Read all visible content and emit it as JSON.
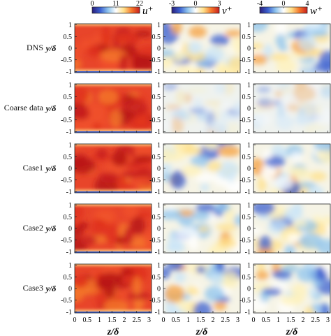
{
  "rows": [
    {
      "label": "DNS",
      "ylabel": "y/δ"
    },
    {
      "label": "Coarse data",
      "ylabel": "y/δ"
    },
    {
      "label": "Case1",
      "ylabel": "y/δ"
    },
    {
      "label": "Case2",
      "ylabel": "y/δ"
    },
    {
      "label": "Case3",
      "ylabel": "y/δ"
    }
  ],
  "columns": [
    {
      "variable": "u⁺",
      "colorbar_ticks": [
        "0",
        "11",
        "22"
      ],
      "range": [
        0,
        22
      ]
    },
    {
      "variable": "v⁺",
      "colorbar_ticks": [
        "-3",
        "0",
        "3"
      ],
      "range": [
        -3,
        3
      ]
    },
    {
      "variable": "w⁺",
      "colorbar_ticks": [
        "-4",
        "0",
        "4"
      ],
      "range": [
        -4,
        4
      ]
    }
  ],
  "axes": {
    "x_label": "z/δ",
    "x_ticks": [
      "0",
      "0.5",
      "1",
      "1.5",
      "2",
      "2.5",
      "3"
    ],
    "y_ticks": [
      "1",
      "0.5",
      "0",
      "-0.5",
      "-1"
    ]
  },
  "colormap": [
    "#2b1f7a",
    "#3a5fd0",
    "#8fc4ee",
    "#ffffff",
    "#ffe08a",
    "#f5772a",
    "#c81e1e"
  ]
}
